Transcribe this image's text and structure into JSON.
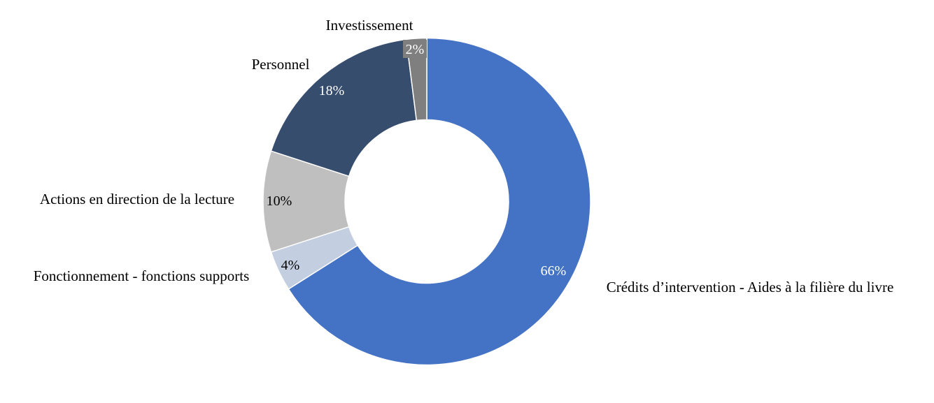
{
  "chart_data": {
    "type": "pie",
    "variant": "donut",
    "title": "",
    "start_angle": "12 o'clock, clockwise",
    "legend": "none (category labels outside slices)",
    "slices": [
      {
        "label": "Crédits d’intervention - Aides à la filière du livre",
        "value": 66,
        "value_label": "66%",
        "color": "#4472C4",
        "label_color": "#FFFFFF"
      },
      {
        "label": "Fonctionnement - fonctions supports",
        "value": 4,
        "value_label": "4%",
        "color": "#C3CEE1",
        "label_color": "#000000"
      },
      {
        "label": "Actions en direction de la lecture",
        "value": 10,
        "value_label": "10%",
        "color": "#BFBFBF",
        "label_color": "#000000"
      },
      {
        "label": "Personnel",
        "value": 18,
        "value_label": "18%",
        "color": "#374D6E",
        "label_color": "#FFFFFF"
      },
      {
        "label": "Investissement",
        "value": 2,
        "value_label": "2%",
        "color": "#7F7F7F",
        "label_color": "#FFFFFF"
      }
    ]
  }
}
